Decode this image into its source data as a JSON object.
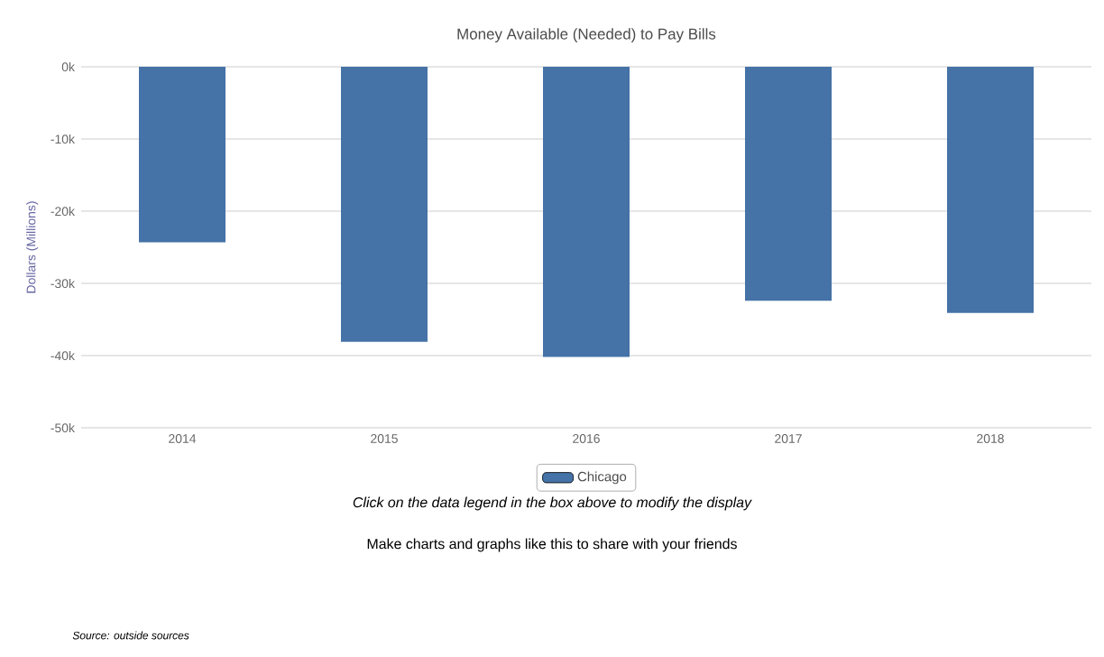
{
  "chart_data": {
    "type": "bar",
    "title": "Money Available (Needed) to Pay Bills",
    "ylabel": "Dollars (Millions)",
    "categories": [
      "2014",
      "2015",
      "2016",
      "2017",
      "2018"
    ],
    "series": [
      {
        "name": "Chicago",
        "color": "#4572a7",
        "values": [
          -24300,
          -38100,
          -40200,
          -32400,
          -34100
        ]
      }
    ],
    "ylim": [
      -50000,
      0
    ],
    "yticks": [
      {
        "value": -50000,
        "label": "-50k"
      },
      {
        "value": -40000,
        "label": "-40k"
      },
      {
        "value": -30000,
        "label": "-30k"
      },
      {
        "value": -20000,
        "label": "-20k"
      },
      {
        "value": -10000,
        "label": "-10k"
      },
      {
        "value": 0,
        "label": "0k"
      }
    ],
    "grid": "y",
    "legend": "bottom",
    "annotations": [
      "Click on the data legend in the box above to modify the display",
      "Make charts and graphs like this to share with your friends",
      "Source: outside sources"
    ]
  }
}
